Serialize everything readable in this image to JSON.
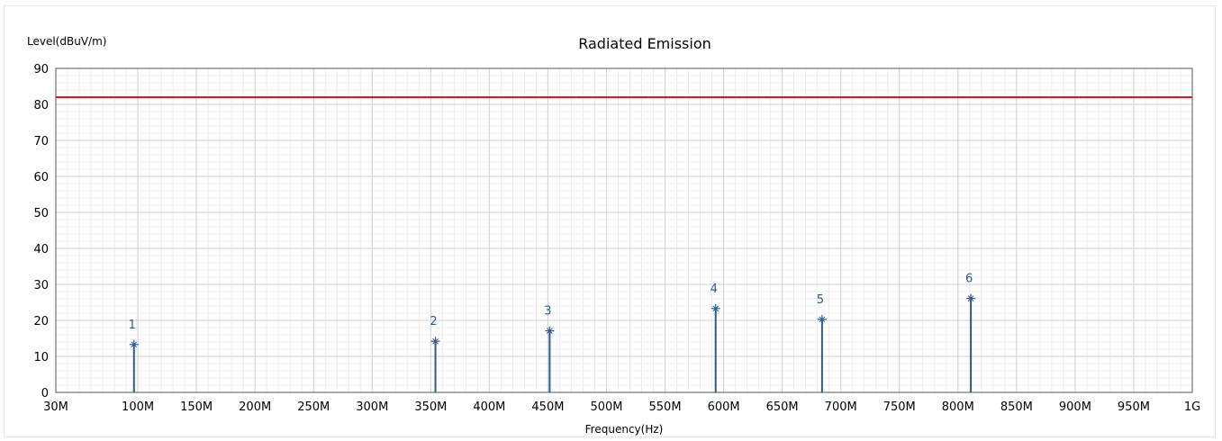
{
  "chart_data": {
    "type": "scatter",
    "title": "Radiated Emission",
    "xlabel": "Frequency(Hz)",
    "ylabel": "Level(dBuV/m)",
    "xlim": [
      30,
      1000
    ],
    "ylim": [
      0,
      90
    ],
    "x_scale": "linear",
    "grid": true,
    "x_ticks": [
      {
        "value": 30,
        "label": "30M"
      },
      {
        "value": 100,
        "label": "100M"
      },
      {
        "value": 150,
        "label": "150M"
      },
      {
        "value": 200,
        "label": "200M"
      },
      {
        "value": 250,
        "label": "250M"
      },
      {
        "value": 300,
        "label": "300M"
      },
      {
        "value": 350,
        "label": "350M"
      },
      {
        "value": 400,
        "label": "400M"
      },
      {
        "value": 450,
        "label": "450M"
      },
      {
        "value": 500,
        "label": "500M"
      },
      {
        "value": 550,
        "label": "550M"
      },
      {
        "value": 600,
        "label": "600M"
      },
      {
        "value": 650,
        "label": "650M"
      },
      {
        "value": 700,
        "label": "700M"
      },
      {
        "value": 750,
        "label": "750M"
      },
      {
        "value": 800,
        "label": "800M"
      },
      {
        "value": 850,
        "label": "850M"
      },
      {
        "value": 900,
        "label": "900M"
      },
      {
        "value": 950,
        "label": "950M"
      },
      {
        "value": 1000,
        "label": "1G"
      }
    ],
    "y_ticks": [
      0,
      10,
      20,
      30,
      40,
      50,
      60,
      70,
      80,
      90
    ],
    "limit_line": {
      "value": 82,
      "color": "#e8141b"
    },
    "series": [
      {
        "color": "#2e5a8c",
        "points": [
          {
            "label": "1",
            "x": 96.7,
            "y": 13.3
          },
          {
            "label": "2",
            "x": 354.0,
            "y": 14.2
          },
          {
            "label": "3",
            "x": 451.5,
            "y": 17.1
          },
          {
            "label": "4",
            "x": 593.2,
            "y": 23.3
          },
          {
            "label": "5",
            "x": 684.0,
            "y": 20.3
          },
          {
            "label": "6",
            "x": 811.0,
            "y": 26.1
          }
        ]
      }
    ]
  }
}
